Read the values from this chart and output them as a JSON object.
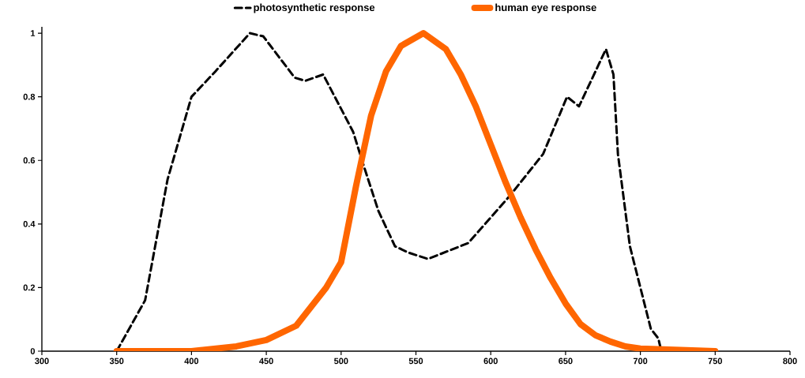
{
  "chart_data": {
    "type": "line",
    "xlim": [
      300,
      800
    ],
    "xticks": [
      300,
      350,
      400,
      450,
      500,
      550,
      600,
      650,
      700,
      750,
      800
    ],
    "ylim": [
      0,
      1.02
    ],
    "yticks": [
      0,
      0.2,
      0.4,
      0.6,
      0.8,
      1
    ],
    "legend": "top",
    "grid": false,
    "marker": "none",
    "series": [
      {
        "name": "photosynthetic response",
        "color": "#000000",
        "line_style": "dashed",
        "x": [
          350,
          369,
          384,
          400,
          416,
          439,
          448,
          469,
          476,
          488,
          508,
          516,
          525,
          536,
          545,
          558,
          585,
          613,
          635,
          651,
          659,
          677,
          682,
          685,
          693,
          707,
          712,
          714
        ],
        "values": [
          0,
          0.16,
          0.54,
          0.8,
          0.88,
          1.0,
          0.99,
          0.86,
          0.85,
          0.87,
          0.69,
          0.57,
          0.44,
          0.33,
          0.31,
          0.29,
          0.34,
          0.49,
          0.62,
          0.8,
          0.77,
          0.95,
          0.87,
          0.62,
          0.33,
          0.07,
          0.04,
          0
        ]
      },
      {
        "name": "human eye response",
        "color": "#ff6600",
        "line_style": "solid",
        "x": [
          350,
          400,
          430,
          450,
          470,
          490,
          500,
          510,
          520,
          530,
          540,
          555,
          570,
          580,
          590,
          600,
          610,
          620,
          630,
          640,
          650,
          660,
          670,
          680,
          690,
          700,
          750
        ],
        "values": [
          0,
          0,
          0.015,
          0.035,
          0.08,
          0.2,
          0.28,
          0.52,
          0.74,
          0.88,
          0.96,
          1.0,
          0.95,
          0.87,
          0.77,
          0.65,
          0.53,
          0.42,
          0.32,
          0.23,
          0.15,
          0.085,
          0.05,
          0.03,
          0.015,
          0.008,
          0
        ]
      }
    ]
  }
}
